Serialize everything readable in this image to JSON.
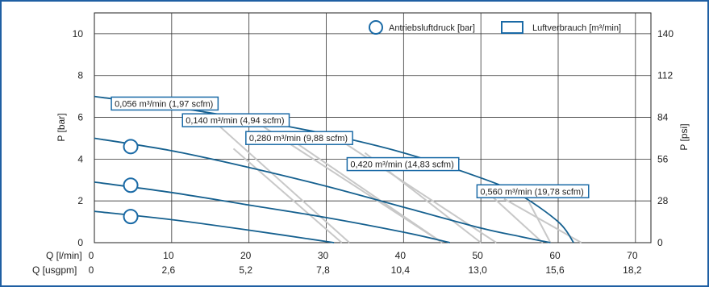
{
  "chart_data": {
    "type": "line",
    "xlabel_lmin": "Q [l/min]",
    "xlabel_usgpm": "Q [usgpm]",
    "ylabel_left": "P [bar]",
    "ylabel_right": "P [psi]",
    "x_ticks": [
      "0",
      "10",
      "20",
      "30",
      "40",
      "50",
      "60",
      "70"
    ],
    "x_ticks_usgpm": [
      "0",
      "2,6",
      "5,2",
      "7,8",
      "10,4",
      "13,0",
      "15,6",
      "18,2"
    ],
    "y_ticks": [
      "0",
      "2",
      "4",
      "6",
      "8",
      "10"
    ],
    "y_ticks_psi": [
      "0",
      "28",
      "56",
      "84",
      "112",
      "140"
    ],
    "xlim": [
      0,
      72
    ],
    "ylim": [
      0,
      11
    ],
    "grid": true,
    "legend_position": "top-right",
    "legend": [
      {
        "name": "Antriebsluftdruck [bar]",
        "marker": "circle",
        "color": "#1a6aa6"
      },
      {
        "name": "Luftverbrauch [m³/min]",
        "marker": "box",
        "color": "#1a6aa6"
      }
    ],
    "pressure_series": [
      {
        "drive_pressure": 7,
        "x": [
          0,
          10,
          20,
          30,
          40,
          50,
          55,
          60,
          62
        ],
        "y": [
          7.0,
          6.5,
          5.9,
          5.2,
          4.3,
          3.1,
          2.3,
          1.0,
          0.0
        ]
      },
      {
        "drive_pressure": 5,
        "x": [
          0,
          10,
          20,
          30,
          40,
          50,
          55,
          59
        ],
        "y": [
          5.0,
          4.4,
          3.6,
          2.7,
          1.7,
          0.7,
          0.3,
          0.0
        ]
      },
      {
        "drive_pressure": 3,
        "x": [
          0,
          10,
          20,
          30,
          40,
          46
        ],
        "y": [
          2.9,
          2.4,
          1.8,
          1.2,
          0.5,
          0.0
        ]
      },
      {
        "drive_pressure": 1.5,
        "x": [
          0,
          10,
          20,
          31
        ],
        "y": [
          1.5,
          1.1,
          0.6,
          0.0
        ]
      }
    ],
    "air_consumption_lines": [
      {
        "x": [
          14,
          33
        ],
        "y": [
          6.3,
          0.0
        ]
      },
      {
        "x": [
          18,
          32
        ],
        "y": [
          4.5,
          0.0
        ]
      },
      {
        "x": [
          20,
          45
        ],
        "y": [
          6.0,
          0.0
        ]
      },
      {
        "x": [
          26,
          45
        ],
        "y": [
          4.8,
          0.0
        ]
      },
      {
        "x": [
          31,
          52
        ],
        "y": [
          5.1,
          0.0
        ]
      },
      {
        "x": [
          35,
          50
        ],
        "y": [
          4.3,
          0.0
        ]
      },
      {
        "x": [
          50,
          58
        ],
        "y": [
          2.7,
          0.0
        ]
      },
      {
        "x": [
          53,
          63
        ],
        "y": [
          2.1,
          0.0
        ]
      },
      {
        "x": [
          55,
          59
        ],
        "y": [
          2.8,
          0.0
        ]
      }
    ],
    "drive_pressure_markers": [
      {
        "x": 4.7,
        "y": 4.6
      },
      {
        "x": 4.7,
        "y": 2.75
      },
      {
        "x": 4.7,
        "y": 1.25
      }
    ],
    "annotations": [
      {
        "text": "0,056 m³/min (1,97 scfm)",
        "x": 2.2,
        "y": 6.66
      },
      {
        "text": "0,140 m³/min (4,94 scfm)",
        "x": 11.4,
        "y": 5.86
      },
      {
        "text": "0,280 m³/min (9,88 scfm)",
        "x": 19.6,
        "y": 5.01
      },
      {
        "text": "0,420 m³/min (14,83 scfm)",
        "x": 32.7,
        "y": 3.76
      },
      {
        "text": "0,560 m³/min (19,78 scfm)",
        "x": 49.5,
        "y": 2.46
      }
    ]
  }
}
